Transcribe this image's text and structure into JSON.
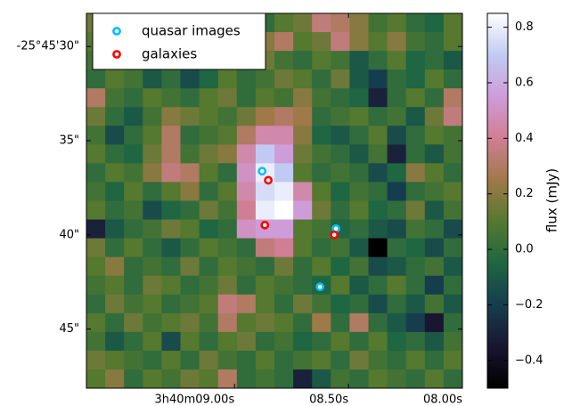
{
  "chart_data": {
    "type": "heatmap",
    "xlim": [
      9.65,
      8.0
    ],
    "xticks": [
      {
        "value": 9.0,
        "label": "3h40m09.00s"
      },
      {
        "value": 8.5,
        "label": "08.50s"
      },
      {
        "value": 8.0,
        "label": "08.00s"
      }
    ],
    "ylim": [
      48.14,
      28.24
    ],
    "yticks": [
      {
        "value": 30,
        "label": "-25°45'30\""
      },
      {
        "value": 35,
        "label": "35\""
      },
      {
        "value": 40,
        "label": "40\""
      },
      {
        "value": 45,
        "label": "45\""
      }
    ],
    "colorbar_label": "flux (mJy)",
    "clim": [
      -0.5,
      0.85
    ],
    "cticks": [
      {
        "value": -0.4,
        "label": "−0.4"
      },
      {
        "value": -0.2,
        "label": "−0.2"
      },
      {
        "value": 0,
        "label": "0.0"
      },
      0.2,
      0.4,
      0.6,
      0.8
    ],
    "colormap": [
      "#000000",
      "#1a1530",
      "#163d4e",
      "#1f6642",
      "#54792f",
      "#a07949",
      "#d07e93",
      "#cf9cda",
      "#c1caf3",
      "#ffffff"
    ],
    "legend": "upper left",
    "z": [
      [
        0.15,
        0.05,
        0.1,
        0.2,
        0.0,
        0.1,
        0.05,
        0.15,
        0.2,
        0.0,
        0.1,
        0.15,
        0.35,
        0.3,
        0.2,
        0.05,
        0.1,
        0.0,
        -0.05,
        0.1
      ],
      [
        0.1,
        0.0,
        0.2,
        0.15,
        0.05,
        0.1,
        0.0,
        -0.05,
        0.1,
        0.2,
        0.3,
        0.1,
        0.15,
        0.35,
        0.2,
        0.1,
        0.2,
        0.05,
        0.0,
        0.1
      ],
      [
        0.05,
        0.15,
        0.1,
        0.0,
        -0.05,
        0.1,
        0.2,
        0.05,
        0.1,
        0.15,
        0.05,
        0.0,
        0.1,
        0.05,
        -0.1,
        0.0,
        0.1,
        -0.05,
        0.0,
        -0.1
      ],
      [
        0.0,
        0.1,
        0.05,
        -0.1,
        0.0,
        -0.15,
        -0.05,
        0.1,
        0.0,
        0.05,
        0.15,
        0.1,
        0.0,
        0.15,
        -0.1,
        -0.2,
        0.0,
        -0.05,
        0.1,
        0.0
      ],
      [
        0.3,
        0.05,
        0.0,
        0.1,
        0.05,
        0.0,
        0.1,
        0.15,
        0.0,
        0.1,
        0.05,
        0.2,
        0.05,
        0.0,
        -0.05,
        -0.3,
        0.0,
        0.1,
        0.0,
        0.3
      ],
      [
        0.15,
        0.0,
        -0.1,
        0.05,
        0.2,
        0.15,
        0.1,
        0.05,
        0.15,
        0.25,
        0.3,
        0.25,
        0.0,
        0.05,
        0.1,
        0.0,
        0.05,
        -0.1,
        0.15,
        0.35
      ],
      [
        0.05,
        -0.15,
        0.0,
        0.1,
        0.3,
        0.0,
        0.05,
        0.1,
        0.3,
        0.45,
        0.45,
        0.2,
        -0.05,
        -0.1,
        0.0,
        0.1,
        -0.15,
        0.0,
        0.1,
        0.05
      ],
      [
        0.1,
        0.0,
        -0.05,
        0.15,
        0.3,
        0.05,
        0.15,
        0.2,
        0.45,
        0.7,
        0.55,
        0.15,
        0.05,
        0.0,
        -0.1,
        0.05,
        -0.3,
        0.0,
        -0.1,
        0.05
      ],
      [
        0.0,
        0.1,
        0.05,
        0.2,
        0.35,
        0.3,
        0.1,
        0.0,
        0.5,
        0.8,
        0.7,
        0.1,
        0.0,
        0.05,
        0.0,
        -0.15,
        -0.05,
        0.2,
        0.1,
        0.0
      ],
      [
        0.05,
        -0.05,
        0.1,
        0.0,
        0.1,
        0.2,
        0.0,
        0.1,
        0.45,
        0.75,
        0.8,
        0.45,
        0.1,
        -0.05,
        0.05,
        0.0,
        -0.2,
        0.0,
        0.05,
        0.1
      ],
      [
        0.1,
        0.0,
        0.05,
        -0.15,
        -0.05,
        0.0,
        0.15,
        0.05,
        0.4,
        0.8,
        0.85,
        0.55,
        0.15,
        0.0,
        0.1,
        -0.05,
        0.0,
        0.15,
        -0.1,
        0.05
      ],
      [
        -0.3,
        -0.1,
        0.0,
        0.05,
        0.15,
        0.1,
        -0.05,
        0.0,
        0.5,
        0.55,
        0.55,
        0.1,
        0.05,
        -0.05,
        0.0,
        -0.1,
        -0.15,
        0.05,
        0.0,
        -0.15
      ],
      [
        0.15,
        0.0,
        0.1,
        0.0,
        -0.1,
        0.0,
        0.1,
        0.05,
        0.0,
        0.35,
        0.4,
        0.1,
        0.0,
        0.05,
        -0.1,
        -0.5,
        0.0,
        -0.05,
        -0.15,
        0.0
      ],
      [
        0.1,
        0.2,
        0.0,
        0.05,
        0.0,
        0.15,
        0.0,
        0.1,
        0.05,
        0.0,
        0.15,
        0.0,
        0.1,
        -0.05,
        0.05,
        -0.15,
        -0.1,
        0.0,
        0.05,
        -0.1
      ],
      [
        0.05,
        0.1,
        0.0,
        0.15,
        0.1,
        0.0,
        0.05,
        0.15,
        0.0,
        0.1,
        0.05,
        0.0,
        -0.05,
        0.1,
        -0.1,
        0.0,
        0.1,
        0.0,
        -0.2,
        0.0
      ],
      [
        0.0,
        0.15,
        0.05,
        0.1,
        0.0,
        0.05,
        0.1,
        0.35,
        0.3,
        0.1,
        0.0,
        0.15,
        0.05,
        -0.05,
        0.0,
        -0.15,
        0.0,
        -0.1,
        0.05,
        -0.1
      ],
      [
        0.1,
        0.0,
        0.15,
        0.05,
        0.1,
        0.15,
        0.05,
        0.3,
        0.1,
        0.15,
        0.1,
        0.0,
        0.25,
        0.0,
        0.3,
        0.0,
        -0.1,
        -0.2,
        -0.35,
        0.0
      ],
      [
        0.05,
        -0.1,
        0.0,
        0.1,
        -0.15,
        0.1,
        0.0,
        0.1,
        0.15,
        0.0,
        0.05,
        -0.05,
        0.0,
        0.1,
        0.0,
        0.1,
        -0.05,
        0.0,
        -0.1,
        0.05
      ],
      [
        0.15,
        0.1,
        0.05,
        0.0,
        0.1,
        0.0,
        0.15,
        0.05,
        0.0,
        0.1,
        0.0,
        0.05,
        0.1,
        0.0,
        0.15,
        0.05,
        0.0,
        0.1,
        0.0,
        0.1
      ],
      [
        0.1,
        0.2,
        0.0,
        0.1,
        0.05,
        0.15,
        0.1,
        0.3,
        0.0,
        0.05,
        0.0,
        -0.3,
        -0.1,
        0.05,
        0.0,
        0.1,
        0.05,
        0.0,
        0.1,
        0.0
      ]
    ],
    "series": [
      {
        "name": "quasar images",
        "color": "#00bfff",
        "x": [
          8.879,
          8.555,
          8.625
        ],
        "y": [
          36.62,
          39.67,
          42.76
        ]
      },
      {
        "name": "galaxies",
        "color": "#ff0000",
        "x": [
          8.852,
          8.867,
          8.5625
        ],
        "y": [
          37.1,
          39.48,
          40.0
        ]
      }
    ]
  }
}
